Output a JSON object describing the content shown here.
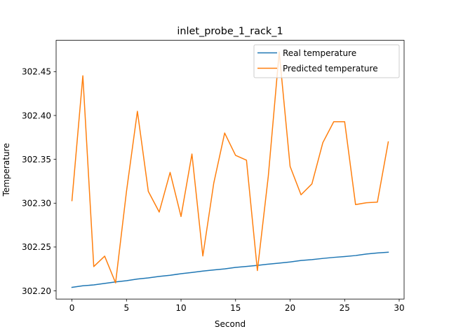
{
  "chart_data": {
    "type": "line",
    "title": "inlet_probe_1_rack_1",
    "xlabel": "Second",
    "ylabel": "Temperature",
    "xlim": [
      -1.45,
      30.45
    ],
    "ylim": [
      302.1907,
      302.4857
    ],
    "xticks": [
      0,
      5,
      10,
      15,
      20,
      25,
      30
    ],
    "xtick_labels": [
      "0",
      "5",
      "10",
      "15",
      "20",
      "25",
      "30"
    ],
    "yticks": [
      302.2,
      302.25,
      302.3,
      302.35,
      302.4,
      302.45
    ],
    "ytick_labels": [
      "302.20",
      "302.25",
      "302.30",
      "302.35",
      "302.40",
      "302.45"
    ],
    "grid": false,
    "legend_position": "top-right",
    "x": [
      0,
      1,
      2,
      3,
      4,
      5,
      6,
      7,
      8,
      9,
      10,
      11,
      12,
      13,
      14,
      15,
      16,
      17,
      18,
      19,
      20,
      21,
      22,
      23,
      24,
      25,
      26,
      27,
      28,
      29
    ],
    "series": [
      {
        "name": "Real temperature",
        "color": "#1f77b4",
        "values": [
          302.204,
          302.2058,
          302.2068,
          302.2085,
          302.2102,
          302.2116,
          302.2135,
          302.2148,
          302.2165,
          302.2178,
          302.2196,
          302.221,
          302.2226,
          302.2239,
          302.2251,
          302.2268,
          302.2279,
          302.2291,
          302.2305,
          302.2317,
          302.233,
          302.2347,
          302.2357,
          302.237,
          302.2382,
          302.2392,
          302.2403,
          302.242,
          302.2432,
          302.2441
        ]
      },
      {
        "name": "Predicted temperature",
        "color": "#ff7f0e",
        "values": [
          302.3028,
          302.4453,
          302.2277,
          302.2396,
          302.2091,
          302.3134,
          302.4048,
          302.3135,
          302.2899,
          302.3351,
          302.2848,
          302.3561,
          302.2398,
          302.3228,
          302.38,
          302.3545,
          302.349,
          302.2232,
          302.3307,
          302.4725,
          302.3419,
          302.3096,
          302.322,
          302.369,
          302.3929,
          302.3929,
          302.2984,
          302.3005,
          302.3012,
          302.3699
        ]
      }
    ]
  }
}
